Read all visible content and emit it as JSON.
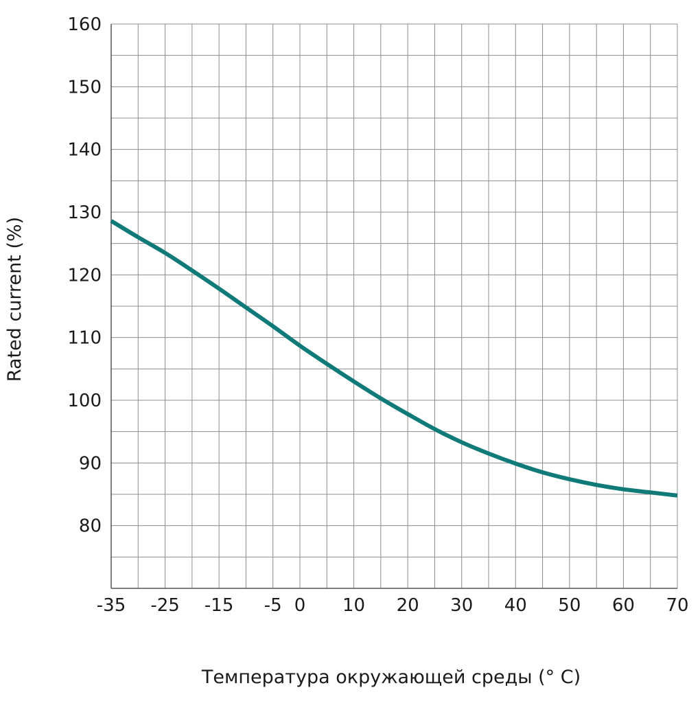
{
  "chart_data": {
    "type": "line",
    "title": "",
    "xlabel": "Температура окружающей среды (° C)",
    "ylabel": "Rated current (%)",
    "x_ticks": [
      -35,
      -25,
      -15,
      -5,
      0,
      10,
      20,
      30,
      40,
      50,
      60,
      70
    ],
    "x_tick_labels": [
      "-35",
      "-25",
      "-15",
      "-5",
      "0",
      "10",
      "20",
      "30",
      "40",
      "50",
      "60",
      "70"
    ],
    "y_ticks": [
      80,
      90,
      100,
      110,
      120,
      130,
      140,
      150,
      160
    ],
    "y_tick_labels": [
      "80",
      "90",
      "100",
      "110",
      "120",
      "130",
      "140",
      "150",
      "160"
    ],
    "xlim": [
      -35,
      70
    ],
    "ylim": [
      70,
      160
    ],
    "grid": true,
    "series": [
      {
        "color": "#0f7a78",
        "x": [
          -35,
          -30,
          -25,
          -20,
          -15,
          -10,
          -5,
          0,
          5,
          10,
          15,
          20,
          25,
          30,
          35,
          40,
          45,
          50,
          55,
          60,
          65,
          70
        ],
        "y": [
          128.6,
          126.0,
          123.5,
          120.7,
          117.8,
          114.8,
          111.8,
          108.7,
          105.8,
          103.0,
          100.3,
          97.8,
          95.4,
          93.3,
          91.5,
          89.9,
          88.5,
          87.4,
          86.5,
          85.8,
          85.3,
          84.8
        ]
      }
    ]
  }
}
